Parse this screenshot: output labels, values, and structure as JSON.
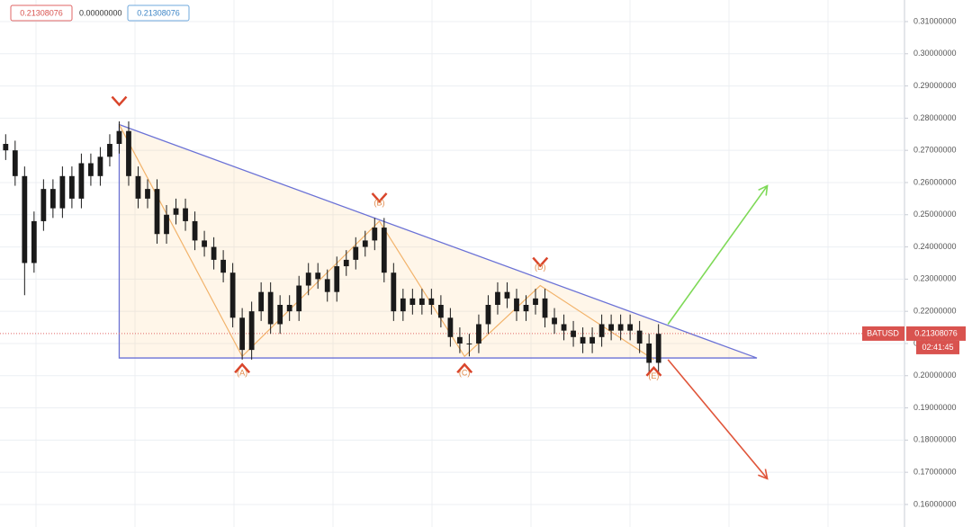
{
  "chart_data": {
    "type": "candlestick",
    "symbol": "BATUSD",
    "last_price": 0.21308076,
    "countdown": "02:41:45",
    "ohlc_readout": [
      "0.21308076",
      "0.00000000",
      "0.21308076"
    ],
    "xlim": [
      -0.6,
      95
    ],
    "ylim": [
      0.153,
      0.3167
    ],
    "yticks": [
      {
        "value": 0.31,
        "label": "0.31000000"
      },
      {
        "value": 0.3,
        "label": "0.30000000"
      },
      {
        "value": 0.29,
        "label": "0.29000000"
      },
      {
        "value": 0.28,
        "label": "0.28000000"
      },
      {
        "value": 0.27,
        "label": "0.27000000"
      },
      {
        "value": 0.26,
        "label": "0.26000000"
      },
      {
        "value": 0.25,
        "label": "0.25000000"
      },
      {
        "value": 0.24,
        "label": "0.24000000"
      },
      {
        "value": 0.23,
        "label": "0.23000000"
      },
      {
        "value": 0.22,
        "label": "0.22000000"
      },
      {
        "value": 0.21,
        "label": "0.21000000"
      },
      {
        "value": 0.2,
        "label": "0.20000000"
      },
      {
        "value": 0.19,
        "label": "0.19000000"
      },
      {
        "value": 0.18,
        "label": "0.18000000"
      },
      {
        "value": 0.17,
        "label": "0.17000000"
      },
      {
        "value": 0.16,
        "label": "0.16000000"
      }
    ],
    "grid": true,
    "candle_color": "#1a1a1a",
    "candles": [
      [
        0.272,
        0.275,
        0.267,
        0.27
      ],
      [
        0.27,
        0.273,
        0.259,
        0.262
      ],
      [
        0.262,
        0.265,
        0.225,
        0.235
      ],
      [
        0.235,
        0.251,
        0.232,
        0.248
      ],
      [
        0.248,
        0.261,
        0.245,
        0.258
      ],
      [
        0.258,
        0.261,
        0.249,
        0.252
      ],
      [
        0.252,
        0.265,
        0.249,
        0.262
      ],
      [
        0.262,
        0.265,
        0.252,
        0.255
      ],
      [
        0.255,
        0.269,
        0.252,
        0.266
      ],
      [
        0.266,
        0.269,
        0.259,
        0.262
      ],
      [
        0.262,
        0.271,
        0.259,
        0.268
      ],
      [
        0.268,
        0.275,
        0.265,
        0.272
      ],
      [
        0.272,
        0.279,
        0.269,
        0.276
      ],
      [
        0.276,
        0.279,
        0.259,
        0.262
      ],
      [
        0.262,
        0.265,
        0.252,
        0.255
      ],
      [
        0.255,
        0.261,
        0.252,
        0.258
      ],
      [
        0.258,
        0.261,
        0.241,
        0.244
      ],
      [
        0.244,
        0.253,
        0.241,
        0.25
      ],
      [
        0.25,
        0.255,
        0.247,
        0.252
      ],
      [
        0.252,
        0.255,
        0.245,
        0.248
      ],
      [
        0.248,
        0.251,
        0.239,
        0.242
      ],
      [
        0.242,
        0.245,
        0.237,
        0.24
      ],
      [
        0.24,
        0.243,
        0.233,
        0.236
      ],
      [
        0.236,
        0.239,
        0.229,
        0.232
      ],
      [
        0.232,
        0.235,
        0.215,
        0.218
      ],
      [
        0.218,
        0.221,
        0.205,
        0.208
      ],
      [
        0.208,
        0.223,
        0.205,
        0.22
      ],
      [
        0.22,
        0.229,
        0.217,
        0.226
      ],
      [
        0.226,
        0.229,
        0.213,
        0.216
      ],
      [
        0.216,
        0.225,
        0.213,
        0.222
      ],
      [
        0.222,
        0.225,
        0.217,
        0.22
      ],
      [
        0.22,
        0.231,
        0.217,
        0.228
      ],
      [
        0.228,
        0.235,
        0.225,
        0.232
      ],
      [
        0.232,
        0.235,
        0.227,
        0.23
      ],
      [
        0.23,
        0.233,
        0.223,
        0.226
      ],
      [
        0.226,
        0.237,
        0.223,
        0.234
      ],
      [
        0.234,
        0.239,
        0.231,
        0.236
      ],
      [
        0.236,
        0.243,
        0.233,
        0.24
      ],
      [
        0.24,
        0.245,
        0.237,
        0.242
      ],
      [
        0.242,
        0.249,
        0.239,
        0.246
      ],
      [
        0.246,
        0.249,
        0.229,
        0.232
      ],
      [
        0.232,
        0.235,
        0.217,
        0.22
      ],
      [
        0.22,
        0.227,
        0.217,
        0.224
      ],
      [
        0.224,
        0.227,
        0.219,
        0.222
      ],
      [
        0.222,
        0.227,
        0.219,
        0.224
      ],
      [
        0.224,
        0.227,
        0.219,
        0.222
      ],
      [
        0.222,
        0.225,
        0.215,
        0.218
      ],
      [
        0.218,
        0.221,
        0.209,
        0.212
      ],
      [
        0.212,
        0.215,
        0.207,
        0.21
      ],
      [
        0.21,
        0.213,
        0.206,
        0.21
      ],
      [
        0.21,
        0.219,
        0.207,
        0.216
      ],
      [
        0.216,
        0.225,
        0.213,
        0.222
      ],
      [
        0.222,
        0.229,
        0.219,
        0.226
      ],
      [
        0.226,
        0.229,
        0.221,
        0.224
      ],
      [
        0.224,
        0.227,
        0.217,
        0.22
      ],
      [
        0.22,
        0.225,
        0.217,
        0.222
      ],
      [
        0.222,
        0.227,
        0.219,
        0.224
      ],
      [
        0.224,
        0.227,
        0.215,
        0.218
      ],
      [
        0.218,
        0.221,
        0.213,
        0.216
      ],
      [
        0.216,
        0.219,
        0.211,
        0.214
      ],
      [
        0.214,
        0.217,
        0.209,
        0.212
      ],
      [
        0.212,
        0.215,
        0.207,
        0.21
      ],
      [
        0.21,
        0.215,
        0.207,
        0.212
      ],
      [
        0.212,
        0.219,
        0.209,
        0.216
      ],
      [
        0.216,
        0.219,
        0.211,
        0.214
      ],
      [
        0.214,
        0.219,
        0.211,
        0.216
      ],
      [
        0.216,
        0.219,
        0.211,
        0.214
      ],
      [
        0.214,
        0.217,
        0.207,
        0.21
      ],
      [
        0.21,
        0.213,
        0.201,
        0.204
      ],
      [
        0.204,
        0.216,
        0.201,
        0.213
      ]
    ],
    "triangle": {
      "x": [
        12,
        79.4,
        12
      ],
      "y": [
        0.278,
        0.2055,
        0.2055
      ]
    },
    "waves": {
      "x": [
        12,
        25,
        39.5,
        48.5,
        56.5,
        68.5
      ],
      "y": [
        0.278,
        0.206,
        0.248,
        0.206,
        0.228,
        0.205
      ],
      "labels": [
        null,
        "(A)",
        "(B)",
        "(C)",
        "(D)",
        "(E)"
      ]
    },
    "arrows": [
      {
        "color": "#7ed957",
        "x": [
          70,
          80.5
        ],
        "y": [
          0.216,
          0.259
        ]
      },
      {
        "color": "#e0553a",
        "x": [
          70,
          80.5
        ],
        "y": [
          0.205,
          0.168
        ]
      }
    ]
  }
}
